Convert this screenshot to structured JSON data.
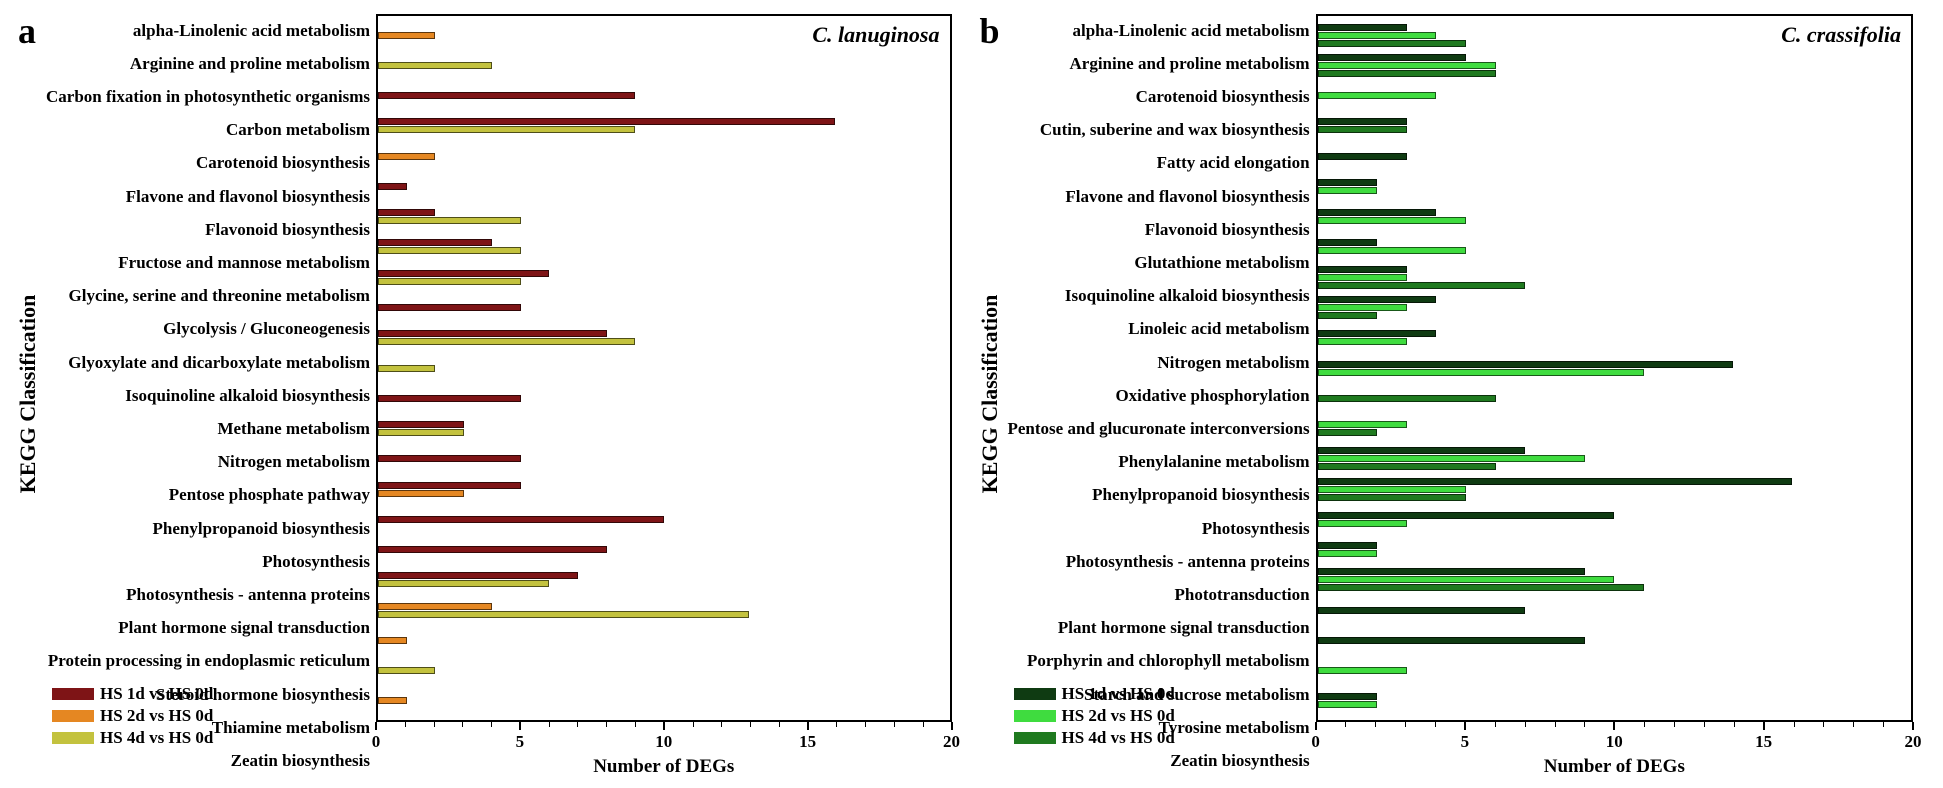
{
  "figure": {
    "font_family": "Times New Roman",
    "label_fontsize": 17,
    "axis_label_fontsize": 22,
    "panel_label_fontsize": 36,
    "species_fontsize": 22,
    "bar_border_color": "#000000",
    "plot_border_color": "#000000",
    "background_color": "#ffffff"
  },
  "panel_a": {
    "panel_label": "a",
    "species": "C. lanuginosa",
    "ylabel": "KEGG  Classification",
    "xlabel": "Number of DEGs",
    "xlim": [
      0,
      20
    ],
    "xtick_step": 5,
    "type": "grouped_horizontal_bar",
    "series": [
      {
        "name": "HS 1d vs HS 0d",
        "color": "#7e1416"
      },
      {
        "name": "HS 2d vs HS 0d",
        "color": "#e58722"
      },
      {
        "name": "HS 4d vs HS 0d",
        "color": "#c3c23e"
      }
    ],
    "categories": [
      "alpha-Linolenic acid metabolism",
      "Arginine and proline metabolism",
      "Carbon fixation in photosynthetic organisms",
      "Carbon metabolism",
      "Carotenoid biosynthesis",
      "Flavone and flavonol biosynthesis",
      "Flavonoid biosynthesis",
      "Fructose and mannose metabolism",
      "Glycine, serine and threonine metabolism",
      "Glycolysis / Gluconeogenesis",
      "Glyoxylate and dicarboxylate metabolism",
      "Isoquinoline alkaloid biosynthesis",
      "Methane metabolism",
      "Nitrogen metabolism",
      "Pentose phosphate pathway",
      "Phenylpropanoid biosynthesis",
      "Photosynthesis",
      "Photosynthesis - antenna proteins",
      "Plant hormone signal transduction",
      "Protein processing in endoplasmic reticulum",
      "Steroid hormone biosynthesis",
      "Thiamine metabolism",
      "Zeatin biosynthesis"
    ],
    "values": [
      [
        0,
        2,
        0
      ],
      [
        0,
        0,
        4
      ],
      [
        9,
        0,
        0
      ],
      [
        16,
        0,
        9
      ],
      [
        0,
        2,
        0
      ],
      [
        1,
        0,
        0
      ],
      [
        2,
        0,
        5
      ],
      [
        4,
        0,
        5
      ],
      [
        6,
        0,
        5
      ],
      [
        5,
        0,
        0
      ],
      [
        8,
        0,
        9
      ],
      [
        0,
        0,
        2
      ],
      [
        5,
        0,
        0
      ],
      [
        3,
        0,
        3
      ],
      [
        5,
        0,
        0
      ],
      [
        5,
        3,
        0
      ],
      [
        10,
        0,
        0
      ],
      [
        8,
        0,
        0
      ],
      [
        7,
        0,
        6
      ],
      [
        0,
        4,
        13
      ],
      [
        0,
        1,
        0
      ],
      [
        0,
        0,
        2
      ],
      [
        0,
        1,
        0
      ]
    ]
  },
  "panel_b": {
    "panel_label": "b",
    "species": "C. crassifolia",
    "ylabel": "KEGG  Classification",
    "xlabel": "Number of DEGs",
    "xlim": [
      0,
      20
    ],
    "xtick_step": 5,
    "type": "grouped_horizontal_bar",
    "series": [
      {
        "name": "HS 1d vs HS 0d",
        "color": "#0f3b12"
      },
      {
        "name": "HS 2d vs HS 0d",
        "color": "#3fdc3f"
      },
      {
        "name": "HS 4d vs HS 0d",
        "color": "#1f7a1f"
      }
    ],
    "categories": [
      "alpha-Linolenic acid metabolism",
      "Arginine and proline metabolism",
      "Carotenoid biosynthesis",
      "Cutin, suberine and wax biosynthesis",
      "Fatty acid elongation",
      "Flavone and flavonol biosynthesis",
      "Flavonoid biosynthesis",
      "Glutathione metabolism",
      "Isoquinoline alkaloid biosynthesis",
      "Linoleic acid metabolism",
      "Nitrogen metabolism",
      "Oxidative phosphorylation",
      "Pentose and glucuronate interconversions",
      "Phenylalanine metabolism",
      "Phenylpropanoid biosynthesis",
      "Photosynthesis",
      "Photosynthesis - antenna proteins",
      "Phototransduction",
      "Plant hormone signal transduction",
      "Porphyrin and chlorophyll metabolism",
      "Starch and sucrose metabolism",
      "Tyrosine metabolism",
      "Zeatin biosynthesis"
    ],
    "values": [
      [
        3,
        4,
        5
      ],
      [
        5,
        6,
        6
      ],
      [
        0,
        4,
        0
      ],
      [
        3,
        0,
        3
      ],
      [
        3,
        0,
        0
      ],
      [
        2,
        2,
        0
      ],
      [
        4,
        5,
        0
      ],
      [
        2,
        5,
        0
      ],
      [
        3,
        3,
        7
      ],
      [
        4,
        3,
        2
      ],
      [
        4,
        3,
        0
      ],
      [
        14,
        11,
        0
      ],
      [
        0,
        0,
        6
      ],
      [
        0,
        3,
        2
      ],
      [
        7,
        9,
        6
      ],
      [
        16,
        5,
        5
      ],
      [
        10,
        3,
        0
      ],
      [
        2,
        2,
        0
      ],
      [
        9,
        10,
        11
      ],
      [
        7,
        0,
        0
      ],
      [
        9,
        0,
        0
      ],
      [
        0,
        3,
        0
      ],
      [
        2,
        2,
        0
      ]
    ]
  }
}
